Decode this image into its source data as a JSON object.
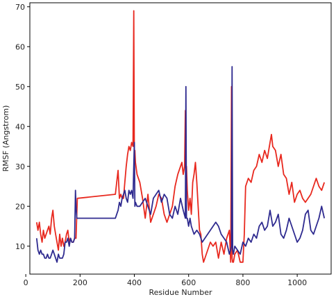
{
  "chart_data": {
    "type": "line",
    "title": "",
    "xlabel": "Residue Number",
    "ylabel": "RMSF (Angstrom)",
    "xlim": [
      15,
      1125
    ],
    "ylim": [
      3,
      71
    ],
    "xticks": [
      0,
      200,
      400,
      600,
      800,
      1000
    ],
    "yticks": [
      10,
      20,
      30,
      40,
      50,
      60,
      70
    ],
    "grid": false,
    "legend": "none",
    "series": [
      {
        "color": "#e8281e",
        "x": [
          40,
          45,
          50,
          55,
          60,
          65,
          70,
          75,
          80,
          85,
          90,
          95,
          100,
          105,
          110,
          115,
          120,
          125,
          130,
          135,
          140,
          145,
          150,
          155,
          160,
          165,
          170,
          175,
          180,
          185,
          190,
          330,
          335,
          340,
          345,
          350,
          355,
          360,
          365,
          370,
          375,
          380,
          385,
          390,
          395,
          398,
          400,
          402,
          404,
          410,
          420,
          430,
          440,
          450,
          460,
          470,
          480,
          490,
          500,
          510,
          520,
          530,
          540,
          550,
          560,
          570,
          575,
          580,
          585,
          588,
          590,
          592,
          595,
          600,
          605,
          610,
          615,
          620,
          625,
          630,
          635,
          640,
          645,
          650,
          655,
          660,
          670,
          680,
          690,
          700,
          710,
          720,
          730,
          740,
          750,
          755,
          758,
          760,
          762,
          765,
          770,
          780,
          790,
          800,
          805,
          810,
          820,
          830,
          840,
          850,
          860,
          870,
          880,
          890,
          900,
          905,
          910,
          920,
          930,
          940,
          950,
          960,
          970,
          980,
          990,
          1000,
          1010,
          1020,
          1030,
          1040,
          1050,
          1060,
          1070,
          1080,
          1090,
          1100
        ],
        "y": [
          16,
          14,
          16,
          13,
          11,
          14,
          12,
          13,
          14,
          15,
          13,
          17,
          19,
          15,
          13,
          11,
          9,
          13,
          10,
          12,
          10,
          11,
          13,
          14,
          11,
          12,
          11,
          11,
          12,
          12,
          22,
          23,
          26,
          29,
          22,
          23,
          22,
          22,
          26,
          30,
          33,
          35,
          34,
          36,
          35,
          69,
          33,
          34,
          31,
          28,
          26,
          22,
          17,
          23,
          16,
          18,
          20,
          23,
          22,
          18,
          16,
          18,
          20,
          25,
          28,
          30,
          31,
          28,
          30,
          44,
          26,
          30,
          24,
          19,
          22,
          18,
          26,
          28,
          31,
          26,
          20,
          14,
          13,
          8,
          6,
          7,
          9,
          11,
          10,
          11,
          7,
          11,
          8,
          12,
          14,
          6,
          50,
          7,
          6,
          6,
          8,
          9,
          6,
          6,
          13,
          25,
          27,
          26,
          29,
          30,
          33,
          31,
          34,
          32,
          36,
          38,
          35,
          34,
          30,
          33,
          28,
          27,
          23,
          26,
          21,
          23,
          24,
          22,
          21,
          22,
          23,
          25,
          27,
          25,
          24,
          26
        ]
      },
      {
        "color": "#2e2a8f",
        "x": [
          40,
          45,
          50,
          55,
          60,
          65,
          70,
          75,
          80,
          85,
          90,
          95,
          100,
          105,
          110,
          115,
          120,
          125,
          130,
          135,
          140,
          145,
          150,
          155,
          160,
          165,
          170,
          175,
          180,
          183,
          185,
          188,
          190,
          330,
          335,
          340,
          345,
          350,
          355,
          360,
          365,
          370,
          375,
          380,
          385,
          390,
          395,
          400,
          402,
          404,
          410,
          420,
          430,
          440,
          450,
          460,
          470,
          480,
          490,
          500,
          510,
          520,
          530,
          540,
          550,
          560,
          570,
          580,
          588,
          590,
          592,
          595,
          600,
          605,
          610,
          620,
          630,
          640,
          650,
          660,
          670,
          680,
          690,
          700,
          710,
          720,
          730,
          740,
          750,
          758,
          760,
          762,
          765,
          770,
          780,
          790,
          800,
          810,
          820,
          830,
          840,
          850,
          860,
          870,
          880,
          890,
          900,
          910,
          920,
          930,
          940,
          950,
          960,
          970,
          980,
          990,
          1000,
          1010,
          1020,
          1030,
          1040,
          1050,
          1060,
          1070,
          1080,
          1090,
          1100
        ],
        "y": [
          12,
          9,
          8,
          9,
          8,
          8,
          7,
          7,
          8,
          7,
          7,
          8,
          9,
          8,
          7,
          6,
          8,
          7,
          7,
          7,
          8,
          11,
          11,
          12,
          10,
          12,
          11,
          11,
          12,
          24,
          20,
          17,
          17,
          17,
          18,
          19,
          21,
          20,
          22,
          23,
          24,
          22,
          21,
          24,
          23,
          24,
          22,
          36,
          20,
          21,
          20,
          20,
          21,
          22,
          20,
          18,
          22,
          23,
          24,
          21,
          23,
          22,
          18,
          17,
          20,
          18,
          22,
          19,
          17,
          50,
          17,
          17,
          15,
          17,
          15,
          13,
          14,
          13,
          11,
          12,
          13,
          14,
          15,
          16,
          15,
          13,
          12,
          11,
          8,
          10,
          55,
          9,
          8,
          10,
          9,
          8,
          11,
          10,
          12,
          11,
          13,
          12,
          15,
          16,
          14,
          15,
          19,
          15,
          16,
          18,
          13,
          12,
          14,
          17,
          15,
          13,
          11,
          12,
          14,
          18,
          19,
          14,
          13,
          15,
          17,
          20,
          17
        ]
      }
    ]
  }
}
